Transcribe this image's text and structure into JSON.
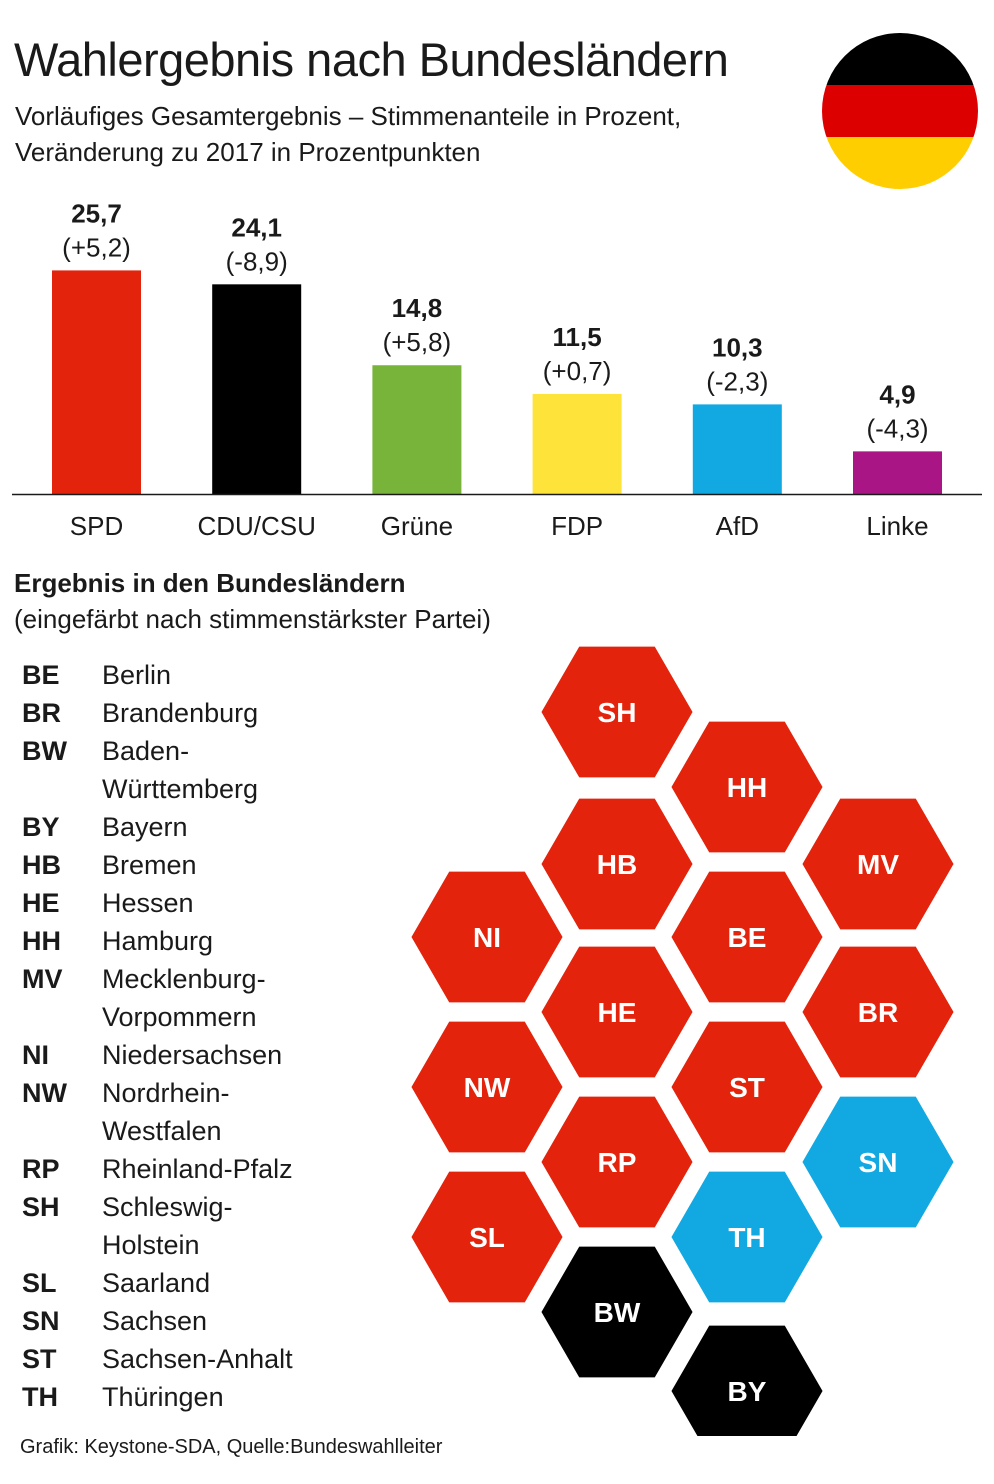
{
  "title": "Wahlergebnis nach Bundesländern",
  "subtitle_lines": [
    "Vorläufiges Gesamtergebnis – Stimmenanteile in Prozent,",
    "Veränderung zu 2017 in Prozentpunkten"
  ],
  "flag_colors": [
    "#000000",
    "#dd0000",
    "#ffce00"
  ],
  "chart_data": [
    {
      "type": "bar",
      "categories": [
        "SPD",
        "CDU/CSU",
        "Grüne",
        "FDP",
        "AfD",
        "Linke"
      ],
      "values": [
        25.7,
        24.1,
        14.8,
        11.5,
        10.3,
        4.9
      ],
      "value_labels": [
        "25,7",
        "24,1",
        "14,8",
        "11,5",
        "10,3",
        "4,9"
      ],
      "change_labels": [
        "(+5,2)",
        "(-8,9)",
        "(+5,8)",
        "(+0,7)",
        "(-2,3)",
        "(-4,3)"
      ],
      "colors": [
        "#e3230b",
        "#000000",
        "#78b43a",
        "#fde33a",
        "#12a8e2",
        "#a91585"
      ],
      "grid": false
    },
    {
      "type": "hex-map",
      "title": "Ergebnis in den Bundesländern",
      "subtitle": "(eingefärbt nach stimmenstärkster Partei)",
      "party_colors": {
        "SPD": "#e3230b",
        "CDU/CSU": "#000000",
        "AfD": "#12a8e2"
      },
      "states": [
        {
          "code": "SH",
          "winner": "SPD"
        },
        {
          "code": "HH",
          "winner": "SPD"
        },
        {
          "code": "HB",
          "winner": "SPD"
        },
        {
          "code": "MV",
          "winner": "SPD"
        },
        {
          "code": "NI",
          "winner": "SPD"
        },
        {
          "code": "BE",
          "winner": "SPD"
        },
        {
          "code": "HE",
          "winner": "SPD"
        },
        {
          "code": "BR",
          "winner": "SPD"
        },
        {
          "code": "NW",
          "winner": "SPD"
        },
        {
          "code": "ST",
          "winner": "SPD"
        },
        {
          "code": "RP",
          "winner": "SPD"
        },
        {
          "code": "SN",
          "winner": "AfD"
        },
        {
          "code": "SL",
          "winner": "SPD"
        },
        {
          "code": "TH",
          "winner": "AfD"
        },
        {
          "code": "BW",
          "winner": "CDU/CSU"
        },
        {
          "code": "BY",
          "winner": "CDU/CSU"
        }
      ]
    }
  ],
  "legend": [
    {
      "code": "BE",
      "name": [
        "Berlin"
      ]
    },
    {
      "code": "BR",
      "name": [
        "Brandenburg"
      ]
    },
    {
      "code": "BW",
      "name": [
        "Baden-",
        "Württemberg"
      ]
    },
    {
      "code": "BY",
      "name": [
        "Bayern"
      ]
    },
    {
      "code": "HB",
      "name": [
        "Bremen"
      ]
    },
    {
      "code": "HE",
      "name": [
        "Hessen"
      ]
    },
    {
      "code": "HH",
      "name": [
        "Hamburg"
      ]
    },
    {
      "code": "MV",
      "name": [
        "Mecklenburg-",
        "Vorpommern"
      ]
    },
    {
      "code": "NI",
      "name": [
        "Niedersachsen"
      ]
    },
    {
      "code": "NW",
      "name": [
        "Nordrhein-",
        "Westfalen"
      ]
    },
    {
      "code": "RP",
      "name": [
        "Rheinland-Pfalz"
      ]
    },
    {
      "code": "SH",
      "name": [
        "Schleswig-",
        "Holstein"
      ]
    },
    {
      "code": "SL",
      "name": [
        "Saarland"
      ]
    },
    {
      "code": "SN",
      "name": [
        "Sachsen"
      ]
    },
    {
      "code": "ST",
      "name": [
        "Sachsen-Anhalt"
      ]
    },
    {
      "code": "TH",
      "name": [
        "Thüringen"
      ]
    }
  ],
  "footer": "Grafik: Keystone-SDA, Quelle:Bundeswahlleiter"
}
